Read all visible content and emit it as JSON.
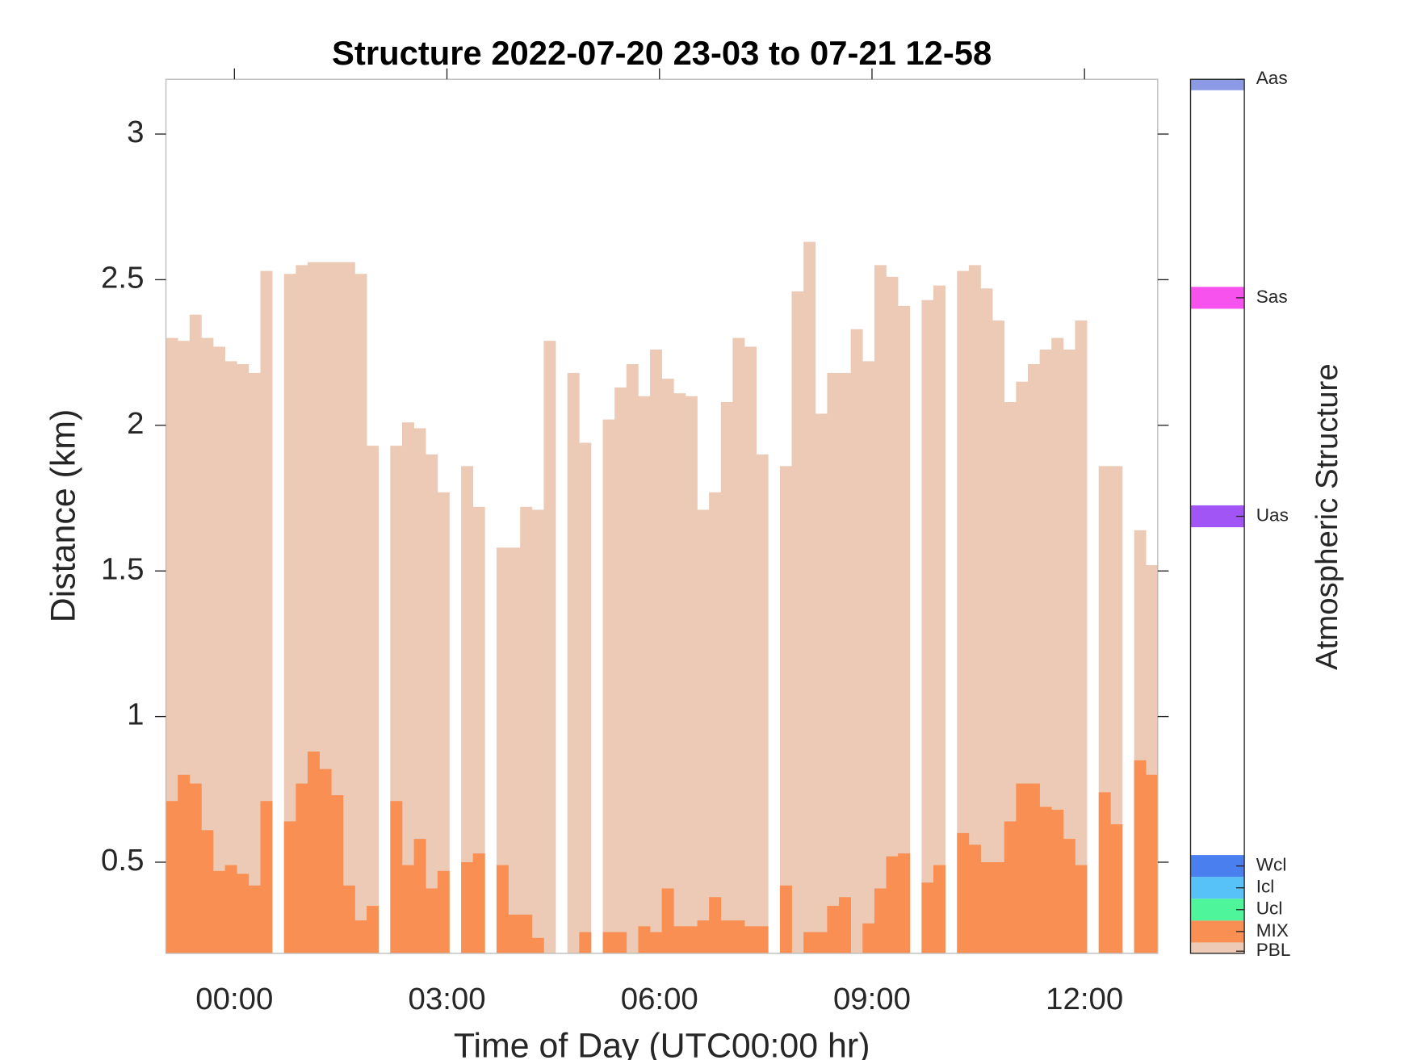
{
  "chart_data": {
    "type": "bar",
    "barmode": "overlay",
    "title": "Structure 2022-07-20 23-03 to 07-21 12-58",
    "xlabel": "Time of Day (UTC00:00 hr)",
    "ylabel": "Distance (km)",
    "x": [
      -53,
      -43,
      -33,
      -23,
      -13,
      -3,
      7,
      17,
      27,
      37,
      47,
      57,
      67,
      77,
      87,
      97,
      107,
      117,
      127,
      137,
      147,
      157,
      167,
      177,
      187,
      197,
      207,
      217,
      227,
      237,
      247,
      257,
      267,
      277,
      287,
      297,
      307,
      317,
      327,
      337,
      347,
      357,
      367,
      377,
      387,
      397,
      407,
      417,
      427,
      437,
      447,
      457,
      467,
      477,
      487,
      497,
      507,
      517,
      527,
      537,
      547,
      557,
      567,
      577,
      587,
      597,
      607,
      617,
      627,
      637,
      647,
      657,
      667,
      677,
      687,
      697,
      707,
      717,
      727,
      737,
      747,
      757,
      767,
      777
    ],
    "xlim": [
      -58,
      782
    ],
    "xticks": [
      {
        "value": 0,
        "label": "00:00"
      },
      {
        "value": 180,
        "label": "03:00"
      },
      {
        "value": 360,
        "label": "06:00"
      },
      {
        "value": 540,
        "label": "09:00"
      },
      {
        "value": 720,
        "label": "12:00"
      }
    ],
    "ylim": [
      0.187,
      3.188
    ],
    "yticks": [
      0.5,
      1,
      1.5,
      2,
      2.5,
      3
    ],
    "series": [
      {
        "color": "#eccab5",
        "values": [
          2.3,
          2.29,
          2.38,
          2.3,
          2.27,
          2.22,
          2.21,
          2.18,
          2.53,
          null,
          2.52,
          2.55,
          2.56,
          2.56,
          2.56,
          2.56,
          2.52,
          1.93,
          null,
          1.93,
          2.01,
          1.99,
          1.9,
          1.77,
          null,
          1.86,
          1.72,
          null,
          1.58,
          1.58,
          1.72,
          1.71,
          2.29,
          null,
          2.18,
          1.94,
          null,
          2.02,
          2.13,
          2.21,
          2.1,
          2.26,
          2.16,
          2.11,
          2.1,
          1.71,
          1.77,
          2.08,
          2.3,
          2.27,
          1.9,
          null,
          1.86,
          2.46,
          2.63,
          2.04,
          2.18,
          2.18,
          2.33,
          2.22,
          2.55,
          2.51,
          2.41,
          null,
          2.43,
          2.48,
          null,
          2.53,
          2.55,
          2.47,
          2.36,
          2.08,
          2.15,
          2.21,
          2.26,
          2.3,
          2.26,
          2.36,
          null,
          1.86,
          1.86,
          null,
          1.64,
          1.52
        ]
      },
      {
        "color": "#f98f52",
        "values": [
          0.71,
          0.8,
          0.77,
          0.61,
          0.47,
          0.49,
          0.46,
          0.42,
          0.71,
          null,
          0.64,
          0.77,
          0.88,
          0.82,
          0.73,
          0.42,
          0.3,
          0.35,
          null,
          0.71,
          0.49,
          0.58,
          0.41,
          0.47,
          null,
          0.5,
          0.53,
          null,
          0.49,
          0.32,
          0.32,
          0.24,
          null,
          null,
          null,
          0.26,
          null,
          0.26,
          0.26,
          null,
          0.28,
          0.26,
          0.41,
          0.28,
          0.28,
          0.3,
          0.38,
          0.3,
          0.3,
          0.28,
          0.28,
          null,
          0.42,
          null,
          0.26,
          0.26,
          0.35,
          0.38,
          null,
          0.29,
          0.41,
          0.52,
          0.53,
          null,
          0.43,
          0.49,
          null,
          0.6,
          0.56,
          0.5,
          0.5,
          0.64,
          0.77,
          0.77,
          0.69,
          0.68,
          0.58,
          0.49,
          null,
          0.74,
          0.63,
          null,
          0.85,
          0.8
        ]
      }
    ],
    "colorbar": {
      "label": "Atmospheric Structure",
      "lim": [
        0,
        40
      ],
      "ticks": [
        {
          "value": 0.1,
          "label": "PBL"
        },
        {
          "value": 1,
          "label": "MIX"
        },
        {
          "value": 2,
          "label": "Ucl"
        },
        {
          "value": 3,
          "label": "Icl"
        },
        {
          "value": 4,
          "label": "Wcl"
        },
        {
          "value": 20,
          "label": "Uas"
        },
        {
          "value": 30,
          "label": "Sas"
        },
        {
          "value": 40,
          "label": "Aas"
        }
      ],
      "colors": [
        "#eccab5",
        "#f98f52",
        "#4ef59a",
        "#56c2f7",
        "#4a7ff0",
        "#a155f5",
        "#f852ee",
        "#8c9ae6"
      ]
    }
  }
}
